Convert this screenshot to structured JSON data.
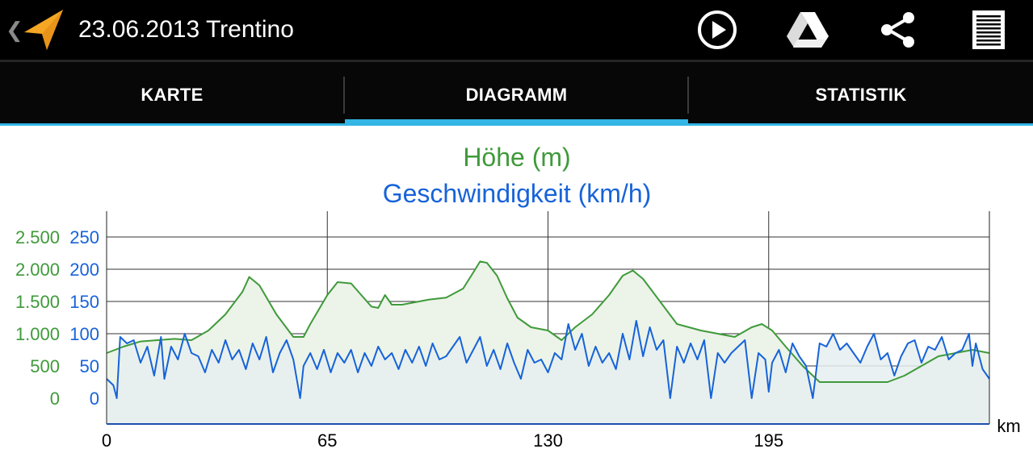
{
  "header": {
    "title": "23.06.2013 Trentino",
    "back_icon": "chevron-left-icon",
    "app_icon": "navigation-arrow-icon",
    "actions": [
      {
        "name": "play-button",
        "icon": "play-circle-icon"
      },
      {
        "name": "google-drive-button",
        "icon": "google-drive-icon"
      },
      {
        "name": "share-button",
        "icon": "share-icon"
      },
      {
        "name": "menu-button",
        "icon": "list-menu-icon"
      }
    ]
  },
  "tabs": [
    {
      "label": "KARTE",
      "selected": false
    },
    {
      "label": "DIAGRAMM",
      "selected": true
    },
    {
      "label": "STATISTIK",
      "selected": false
    }
  ],
  "colors": {
    "elevation": "#3f9a3a",
    "speed": "#1763d9",
    "accent": "#33b5e5",
    "elevation_fill": "#ecf3e8",
    "speed_fill": "#e6eef0"
  },
  "chart_data": {
    "type": "line",
    "title": "Höhe (m)",
    "subtitle": "Geschwindigkeit (km/h)",
    "xlabel": "km",
    "xlim": [
      0,
      260
    ],
    "x_ticks": [
      0,
      65,
      130,
      195
    ],
    "x_tick_labels": [
      "0",
      "65",
      "130",
      "195"
    ],
    "y_left_ticks": [
      0,
      500,
      1000,
      1500,
      2000,
      2500
    ],
    "y_left_tick_labels": [
      "0",
      "500",
      "1.000",
      "1.500",
      "2.000",
      "2.500"
    ],
    "y_left_range": [
      -400,
      2900
    ],
    "y_right_ticks": [
      0,
      50,
      100,
      150,
      200,
      250
    ],
    "y_right_tick_labels": [
      "0",
      "50",
      "100",
      "150",
      "200",
      "250"
    ],
    "y_right_range": [
      -40,
      290
    ],
    "grid": true,
    "series": [
      {
        "name": "Höhe (m)",
        "axis": "left",
        "x": [
          0,
          5,
          10,
          15,
          20,
          25,
          30,
          35,
          40,
          42,
          45,
          50,
          55,
          58,
          60,
          65,
          68,
          72,
          75,
          78,
          80,
          82,
          84,
          87,
          90,
          95,
          100,
          105,
          108,
          110,
          112,
          115,
          118,
          121,
          125,
          130,
          134,
          138,
          143,
          148,
          152,
          155,
          158,
          163,
          168,
          175,
          180,
          185,
          190,
          193,
          196,
          200,
          205,
          210,
          215,
          220,
          225,
          230,
          235,
          240,
          245,
          250,
          255,
          260
        ],
        "y": [
          700,
          800,
          880,
          900,
          920,
          900,
          1050,
          1300,
          1650,
          1880,
          1750,
          1300,
          950,
          950,
          1150,
          1600,
          1800,
          1780,
          1600,
          1420,
          1400,
          1600,
          1450,
          1450,
          1480,
          1530,
          1560,
          1700,
          1950,
          2120,
          2100,
          1900,
          1550,
          1250,
          1100,
          1050,
          900,
          1100,
          1300,
          1600,
          1900,
          1980,
          1850,
          1500,
          1150,
          1050,
          1000,
          950,
          1100,
          1150,
          1050,
          800,
          500,
          250,
          250,
          250,
          250,
          250,
          350,
          500,
          650,
          700,
          750,
          700
        ]
      },
      {
        "name": "Geschwindigkeit (km/h)",
        "axis": "right",
        "x": [
          0,
          2,
          3,
          4,
          6,
          8,
          10,
          12,
          14,
          16,
          17,
          19,
          21,
          23,
          25,
          27,
          29,
          31,
          33,
          35,
          37,
          39,
          41,
          43,
          45,
          47,
          49,
          51,
          53,
          55,
          56,
          57,
          58,
          60,
          62,
          64,
          66,
          68,
          70,
          72,
          74,
          76,
          78,
          80,
          82,
          84,
          86,
          88,
          90,
          92,
          94,
          96,
          98,
          100,
          102,
          104,
          106,
          108,
          110,
          112,
          114,
          116,
          118,
          120,
          122,
          124,
          126,
          128,
          130,
          132,
          134,
          136,
          138,
          140,
          142,
          144,
          146,
          148,
          150,
          152,
          154,
          156,
          158,
          160,
          162,
          164,
          166,
          168,
          170,
          172,
          174,
          176,
          178,
          180,
          182,
          184,
          186,
          188,
          190,
          192,
          194,
          195,
          196,
          198,
          200,
          202,
          204,
          206,
          208,
          210,
          212,
          214,
          216,
          218,
          220,
          222,
          224,
          226,
          228,
          230,
          232,
          234,
          236,
          238,
          240,
          242,
          244,
          246,
          248,
          250,
          252,
          254,
          255,
          256,
          258,
          260
        ],
        "y": [
          30,
          20,
          0,
          95,
          85,
          90,
          55,
          80,
          35,
          95,
          30,
          80,
          60,
          100,
          70,
          65,
          40,
          75,
          55,
          90,
          60,
          75,
          45,
          85,
          60,
          95,
          40,
          70,
          90,
          60,
          30,
          0,
          50,
          70,
          45,
          75,
          40,
          70,
          55,
          75,
          40,
          70,
          50,
          80,
          60,
          70,
          45,
          75,
          55,
          80,
          50,
          85,
          60,
          65,
          80,
          95,
          55,
          75,
          95,
          50,
          75,
          45,
          85,
          55,
          30,
          75,
          55,
          60,
          40,
          70,
          60,
          115,
          75,
          100,
          50,
          80,
          55,
          70,
          45,
          100,
          60,
          120,
          65,
          110,
          75,
          90,
          0,
          80,
          55,
          85,
          60,
          90,
          0,
          70,
          55,
          70,
          80,
          90,
          0,
          70,
          60,
          10,
          55,
          75,
          40,
          85,
          65,
          50,
          0,
          85,
          80,
          100,
          75,
          85,
          70,
          55,
          80,
          100,
          60,
          70,
          35,
          65,
          85,
          90,
          55,
          80,
          75,
          95,
          60,
          70,
          75,
          100,
          50,
          85,
          45,
          30
        ]
      }
    ]
  }
}
